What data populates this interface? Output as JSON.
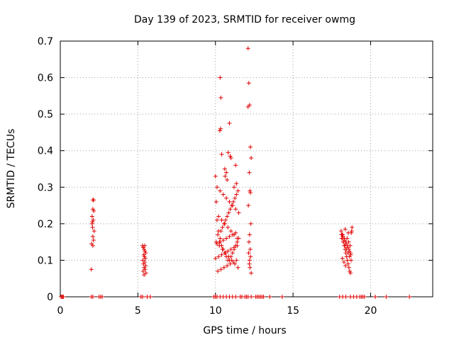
{
  "chart_data": {
    "type": "scatter",
    "title": "Day 139 of 2023, SRMTID for receiver owmg",
    "xlabel": "GPS time / hours",
    "ylabel": "SRMTID / TECUs",
    "xlim": [
      0,
      24
    ],
    "ylim": [
      0,
      0.7
    ],
    "xticks": [
      0,
      5,
      10,
      15,
      20
    ],
    "yticks": [
      0,
      0.1,
      0.2,
      0.3,
      0.4,
      0.5,
      0.6,
      0.7
    ],
    "xtick_labels": [
      "0",
      "5",
      "10",
      "15",
      "20"
    ],
    "ytick_labels": [
      "0",
      "0.1",
      "0.2",
      "0.3",
      "0.4",
      "0.5",
      "0.6",
      "0.7"
    ],
    "grid": true,
    "marker": "+",
    "color": "#e00000",
    "series": [
      {
        "name": "SRMTID",
        "x": [
          2.0,
          2.05,
          2.1,
          2.15,
          2.1,
          2.12,
          2.05,
          2.08,
          2.18,
          2.1,
          2.14,
          2.02,
          2.16,
          2.07,
          2.1,
          5.3,
          5.35,
          5.4,
          5.45,
          5.5,
          5.38,
          5.42,
          5.48,
          5.32,
          5.44,
          5.36,
          5.5,
          5.4,
          5.46,
          5.34,
          5.52,
          5.4,
          5.44,
          10.0,
          10.05,
          10.1,
          10.2,
          10.3,
          10.25,
          10.4,
          10.5,
          10.6,
          10.7,
          10.8,
          10.9,
          11.0,
          11.1,
          11.2,
          11.3,
          11.4,
          11.5,
          10.15,
          10.35,
          10.45,
          10.55,
          10.65,
          10.75,
          10.85,
          10.95,
          11.05,
          11.15,
          11.25,
          11.35,
          11.45,
          10.1,
          10.3,
          10.5,
          10.7,
          10.9,
          11.1,
          11.3,
          11.5,
          10.2,
          10.4,
          10.6,
          10.8,
          11.0,
          11.2,
          11.4,
          10.05,
          10.25,
          10.45,
          10.65,
          10.85,
          11.05,
          11.25,
          11.45,
          10.15,
          10.35,
          10.55,
          10.75,
          10.95,
          11.15,
          11.35,
          10.0,
          10.2,
          10.4,
          10.6,
          10.8,
          11.0,
          11.2,
          11.4,
          10.1,
          10.3,
          10.5,
          10.7,
          10.9,
          11.1,
          11.3,
          10.3,
          10.35,
          10.28,
          10.4,
          10.33,
          10.9,
          10.82,
          11.0,
          10.95,
          10.6,
          10.62,
          10.7,
          10.75,
          11.3,
          11.35,
          11.2,
          12.1,
          12.15,
          12.2,
          12.25,
          12.3,
          12.18,
          12.22,
          12.12,
          12.28,
          12.2,
          12.16,
          12.24,
          12.14,
          12.26,
          12.2,
          12.18,
          12.22,
          12.3,
          12.1,
          12.25,
          18.1,
          18.15,
          18.2,
          18.25,
          18.3,
          18.35,
          18.4,
          18.45,
          18.5,
          18.55,
          18.6,
          18.65,
          18.7,
          18.75,
          18.8,
          18.12,
          18.22,
          18.32,
          18.42,
          18.52,
          18.62,
          18.72,
          18.18,
          18.28,
          18.38,
          18.48,
          18.58,
          18.68,
          18.78,
          18.14,
          18.24,
          18.34,
          18.44,
          18.54,
          18.64,
          18.74,
          18.2,
          18.3,
          18.4,
          18.5,
          18.6,
          18.7,
          18.36,
          18.56,
          0.05,
          0.1,
          0.15,
          0.2,
          2.0,
          2.1,
          2.5,
          2.6,
          2.7,
          5.2,
          5.3,
          5.6,
          5.8,
          9.9,
          10.0,
          10.1,
          10.3,
          10.5,
          10.7,
          10.9,
          11.1,
          11.3,
          11.6,
          11.7,
          11.9,
          12.0,
          12.1,
          12.3,
          12.6,
          12.7,
          12.8,
          12.9,
          13.0,
          13.1,
          13.5,
          14.3,
          18.0,
          18.2,
          18.4,
          18.7,
          18.9,
          19.1,
          19.3,
          19.4,
          19.5,
          19.6,
          20.3,
          21.0,
          22.5
        ],
        "y": [
          0.075,
          0.2,
          0.265,
          0.265,
          0.24,
          0.21,
          0.22,
          0.19,
          0.18,
          0.165,
          0.155,
          0.145,
          0.235,
          0.205,
          0.14,
          0.14,
          0.135,
          0.13,
          0.125,
          0.12,
          0.115,
          0.11,
          0.105,
          0.1,
          0.095,
          0.09,
          0.085,
          0.08,
          0.075,
          0.07,
          0.065,
          0.06,
          0.14,
          0.33,
          0.26,
          0.21,
          0.18,
          0.16,
          0.15,
          0.14,
          0.13,
          0.12,
          0.11,
          0.1,
          0.1,
          0.11,
          0.12,
          0.13,
          0.14,
          0.15,
          0.16,
          0.17,
          0.18,
          0.19,
          0.2,
          0.21,
          0.22,
          0.23,
          0.24,
          0.25,
          0.26,
          0.27,
          0.28,
          0.29,
          0.3,
          0.29,
          0.28,
          0.27,
          0.26,
          0.25,
          0.24,
          0.23,
          0.22,
          0.21,
          0.2,
          0.19,
          0.18,
          0.17,
          0.16,
          0.15,
          0.14,
          0.13,
          0.12,
          0.11,
          0.1,
          0.09,
          0.08,
          0.07,
          0.075,
          0.08,
          0.085,
          0.09,
          0.095,
          0.1,
          0.105,
          0.11,
          0.115,
          0.12,
          0.125,
          0.13,
          0.135,
          0.14,
          0.145,
          0.15,
          0.155,
          0.16,
          0.165,
          0.17,
          0.175,
          0.6,
          0.545,
          0.455,
          0.39,
          0.46,
          0.475,
          0.395,
          0.38,
          0.385,
          0.35,
          0.33,
          0.34,
          0.32,
          0.36,
          0.31,
          0.3,
          0.68,
          0.585,
          0.525,
          0.41,
          0.38,
          0.34,
          0.29,
          0.25,
          0.2,
          0.17,
          0.15,
          0.13,
          0.12,
          0.11,
          0.1,
          0.09,
          0.08,
          0.065,
          0.52,
          0.285,
          0.18,
          0.17,
          0.16,
          0.15,
          0.14,
          0.13,
          0.12,
          0.11,
          0.1,
          0.09,
          0.08,
          0.07,
          0.065,
          0.175,
          0.19,
          0.17,
          0.165,
          0.155,
          0.145,
          0.135,
          0.125,
          0.115,
          0.105,
          0.095,
          0.085,
          0.16,
          0.15,
          0.14,
          0.18,
          0.16,
          0.15,
          0.14,
          0.13,
          0.12,
          0.11,
          0.1,
          0.17,
          0.16,
          0.15,
          0.14,
          0.13,
          0.12,
          0.185,
          0.175,
          0,
          0,
          0,
          0,
          0,
          0,
          0,
          0,
          0,
          0,
          0,
          0,
          0,
          0,
          0,
          0,
          0,
          0,
          0,
          0,
          0,
          0,
          0,
          0,
          0,
          0,
          0,
          0,
          0,
          0,
          0,
          0,
          0,
          0,
          0,
          0,
          0,
          0,
          0,
          0,
          0,
          0,
          0,
          0,
          0,
          0,
          0,
          0,
          0
        ]
      }
    ]
  }
}
